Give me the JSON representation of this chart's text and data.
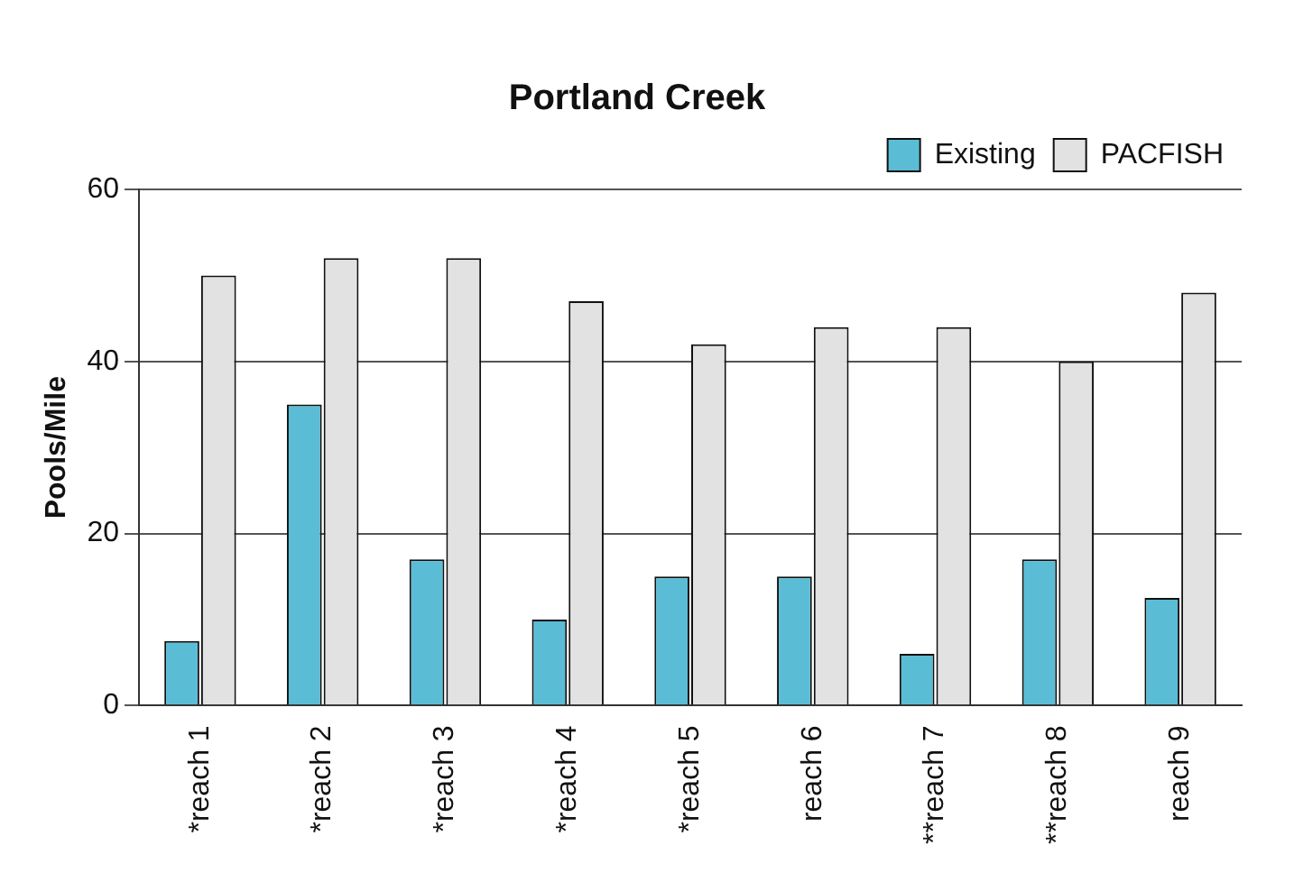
{
  "chart_data": {
    "type": "bar",
    "title": "Portland Creek",
    "ylabel": "Pools/Mile",
    "categories": [
      "*reach 1",
      "*reach 2",
      "*reach 3",
      "*reach 4",
      "*reach 5",
      "reach 6",
      "**reach 7",
      "**reach 8",
      "reach 9"
    ],
    "series": [
      {
        "name": "Existing",
        "color": "#5bbcd6",
        "values": [
          7.5,
          35,
          17,
          10,
          15,
          15,
          6,
          17,
          12.5
        ]
      },
      {
        "name": "PACFISH",
        "color": "#e2e2e2",
        "values": [
          50,
          52,
          52,
          47,
          42,
          44,
          44,
          40,
          48
        ]
      }
    ],
    "ylim": [
      0,
      60
    ],
    "yticks": [
      0,
      20,
      40,
      60
    ],
    "grid": "y",
    "legend": "top right"
  }
}
